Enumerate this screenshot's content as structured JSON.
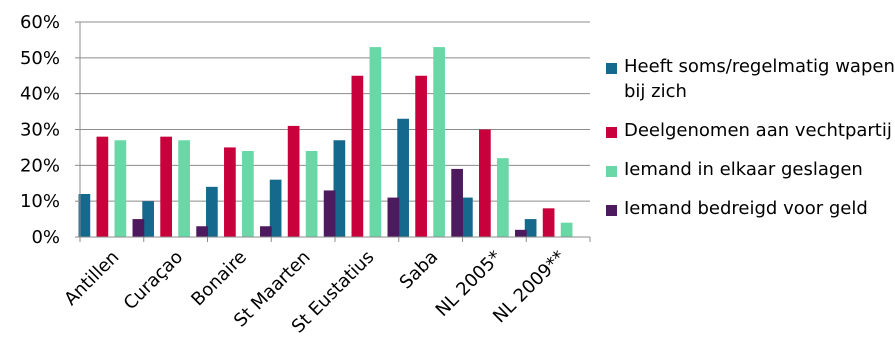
{
  "chart_data": {
    "type": "bar",
    "categories": [
      "Antillen",
      "Curaçao",
      "Bonaire",
      "St Maarten",
      "St Eustatius",
      "Saba",
      "NL 2005*",
      "NL 2009**"
    ],
    "series": [
      {
        "name": "Heeft soms/regelmatig wapen bij zich",
        "color": "#15698c",
        "values": [
          12,
          10,
          14,
          16,
          27,
          33,
          11,
          5
        ]
      },
      {
        "name": "Deelgenomen aan vechtpartij",
        "color": "#c8003c",
        "values": [
          28,
          28,
          25,
          31,
          45,
          45,
          30,
          8
        ]
      },
      {
        "name": "Iemand in elkaar geslagen",
        "color": "#6ad8a6",
        "values": [
          27,
          27,
          24,
          24,
          53,
          53,
          22,
          4
        ]
      },
      {
        "name": "Iemand bedreigd voor geld",
        "color": "#4e1a5e",
        "values": [
          5,
          3,
          3,
          13,
          11,
          19,
          2,
          null
        ]
      }
    ],
    "ylim": [
      0,
      60
    ],
    "yticks": [
      "0%",
      "10%",
      "20%",
      "30%",
      "40%",
      "50%",
      "60%"
    ],
    "grid": true,
    "legend_position": "right"
  }
}
